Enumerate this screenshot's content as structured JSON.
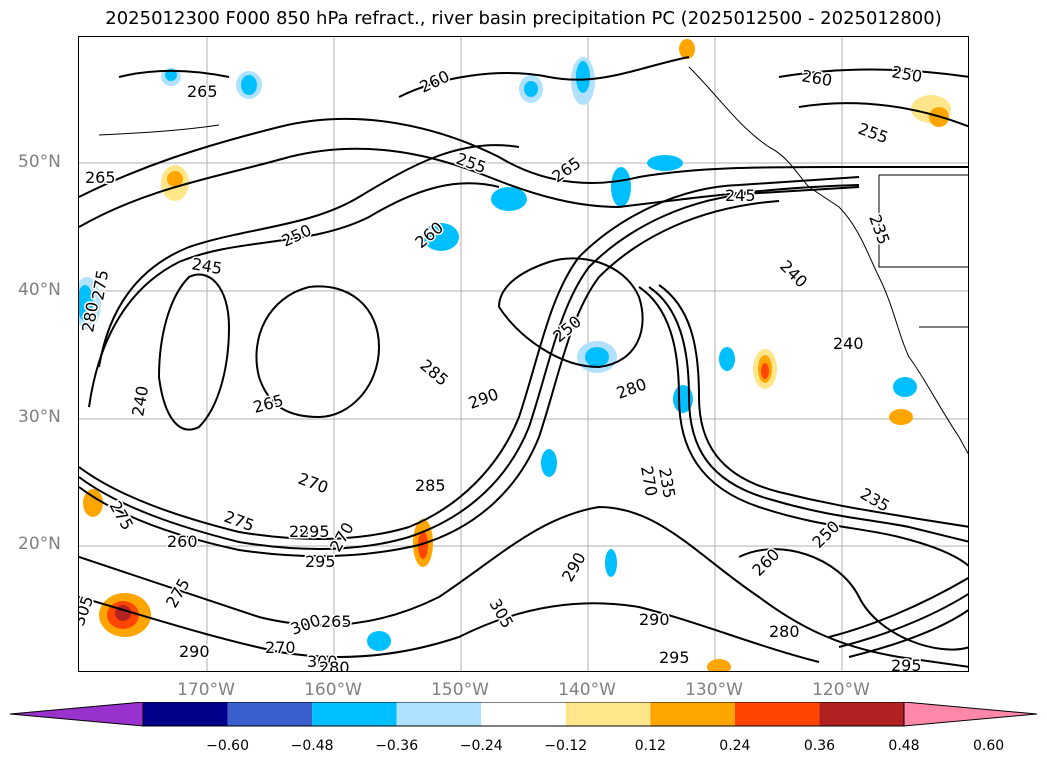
{
  "title": "2025012300 F000 850 hPa refract., river basin precipitation PC (2025012500 - 2025012800)",
  "latitude_labels": [
    "50°N",
    "40°N",
    "30°N",
    "20°N"
  ],
  "longitude_labels": [
    "170°W",
    "160°W",
    "150°W",
    "140°W",
    "130°W",
    "120°W"
  ],
  "contour_labels": [
    "265",
    "260",
    "260",
    "250",
    "255",
    "255",
    "265",
    "265",
    "245",
    "250",
    "260",
    "245",
    "235",
    "240",
    "240",
    "250",
    "280",
    "275",
    "240",
    "285",
    "290",
    "280",
    "265",
    "270",
    "275",
    "290",
    "285",
    "270",
    "235",
    "235",
    "275",
    "260",
    "295",
    "295",
    "270",
    "260",
    "250",
    "290",
    "290",
    "305",
    "295",
    "275",
    "270",
    "265",
    "300",
    "290",
    "305",
    "300",
    "295",
    "280",
    "280"
  ],
  "colorbar": {
    "ticks": [
      "−0.60",
      "−0.48",
      "−0.36",
      "−0.24",
      "−0.12",
      "0.12",
      "0.24",
      "0.36",
      "0.48",
      "0.60"
    ],
    "colors": [
      "#9932CC",
      "#00008B",
      "#3A5FCD",
      "#00BFFF",
      "#B0E2FF",
      "#FFFFFF",
      "#FFE68A",
      "#FFA500",
      "#FF4500",
      "#B22222",
      "#FF88AA"
    ]
  }
}
